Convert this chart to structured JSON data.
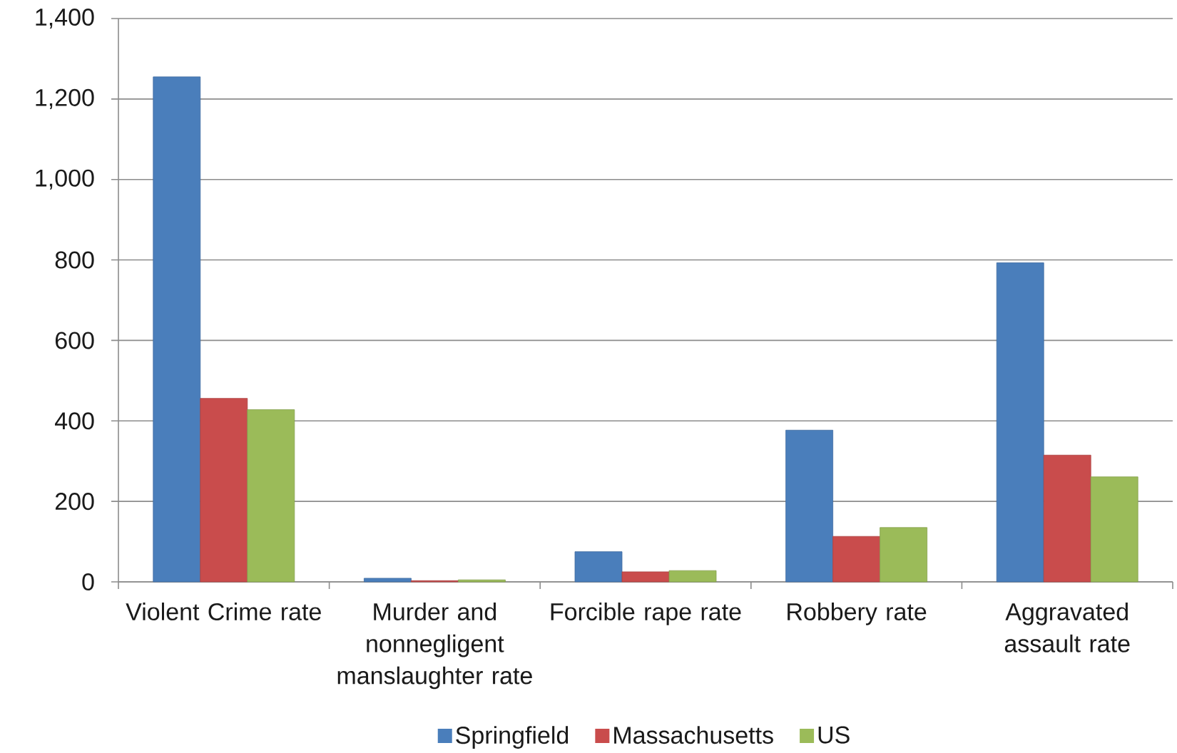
{
  "chart_data": {
    "type": "bar",
    "categories": [
      "Violent Crime rate",
      "Murder and nonnegligent manslaughter rate",
      "Forcible rape rate",
      "Robbery rate",
      "Aggravated assault rate"
    ],
    "series": [
      {
        "name": "Springfield",
        "color": "#4a7ebb",
        "values": [
          1255,
          9,
          75,
          377,
          793
        ]
      },
      {
        "name": "Massachusetts",
        "color": "#c94c4c",
        "values": [
          456,
          3,
          25,
          113,
          315
        ]
      },
      {
        "name": "US",
        "color": "#9bbb59",
        "values": [
          428,
          5,
          28,
          135,
          261
        ]
      }
    ],
    "ylim": [
      0,
      1400
    ],
    "yticks": [
      0,
      200,
      400,
      600,
      800,
      {
        "value": 1000,
        "label": "1,000"
      },
      {
        "value": 1200,
        "label": "1,200"
      },
      {
        "value": 1400,
        "label": "1,400"
      }
    ],
    "grid": "y",
    "legend": "bottom"
  }
}
